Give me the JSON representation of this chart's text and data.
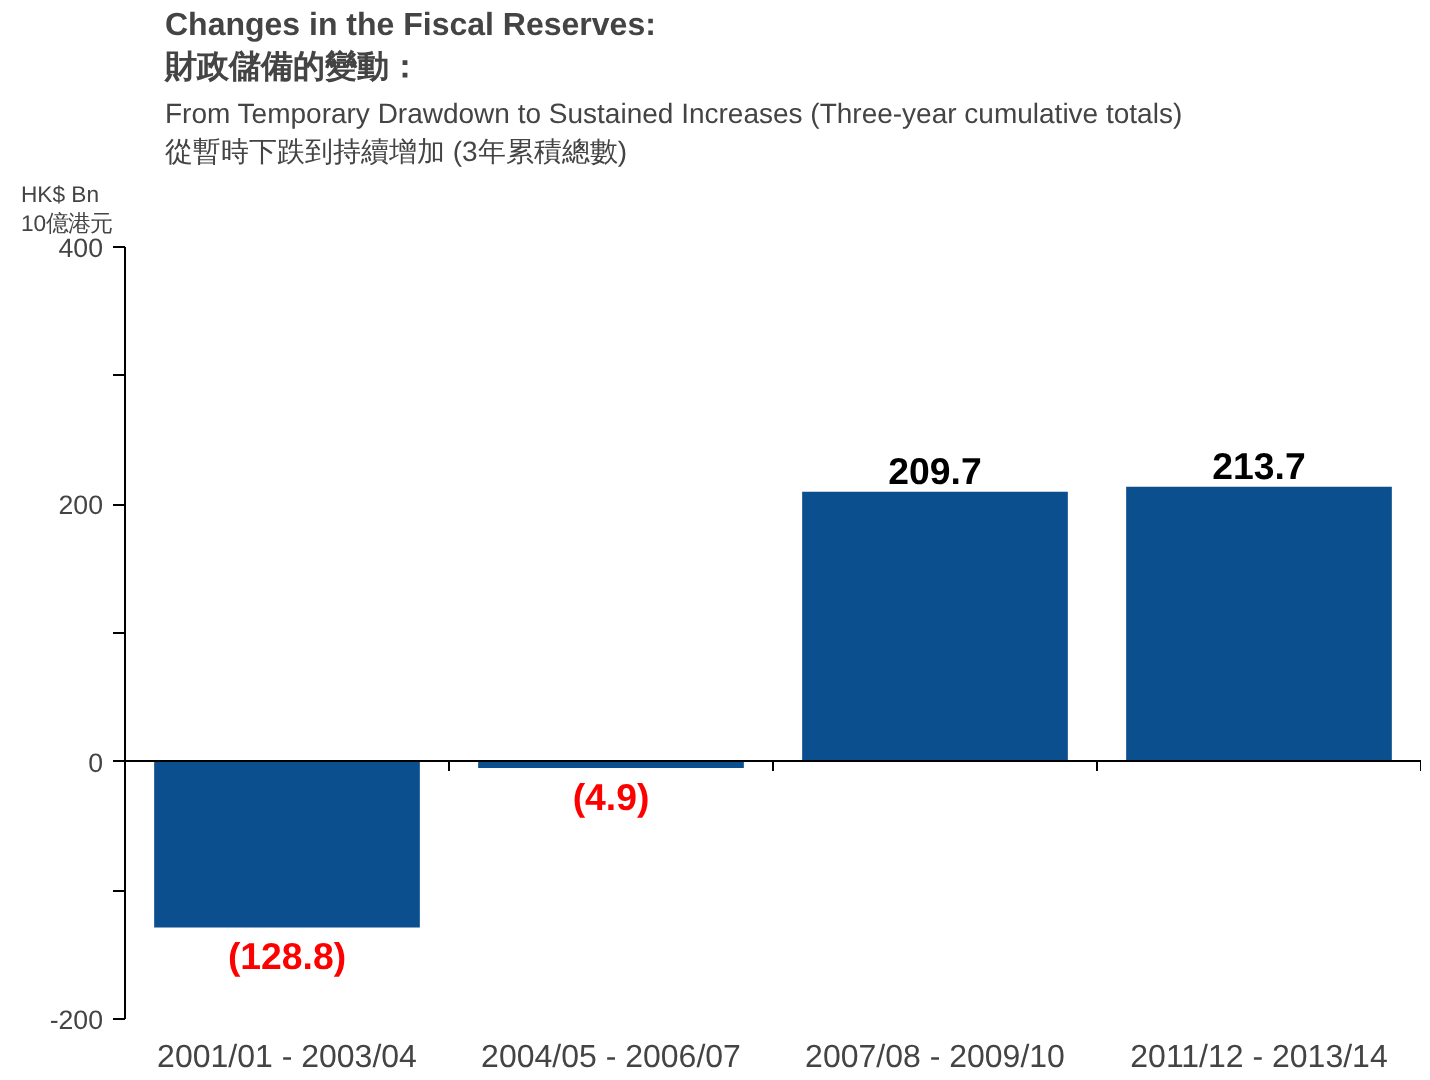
{
  "chart_data": {
    "type": "bar",
    "title": "Changes in the Fiscal Reserves:\n財政儲備的變動：",
    "subtitle": "From Temporary Drawdown to Sustained Increases (Three-year cumulative totals)\n從暫時下跌到持續增加 (3年累積總數)",
    "ylabel": "HK$ Bn\n10億港元",
    "categories": [
      "2001/01 - 2003/04",
      "2004/05 - 2006/07",
      "2007/08 - 2009/10",
      "2011/12 - 2013/14"
    ],
    "values": [
      -128.8,
      -4.9,
      209.7,
      213.7
    ],
    "value_labels": [
      "(128.8)",
      "(4.9)",
      "209.7",
      "213.7"
    ],
    "color": "#0b4f8e",
    "ylim": [
      -200,
      400
    ],
    "yticks": [
      -200,
      {
        "value": -100,
        "label": null
      },
      0,
      {
        "value": 100,
        "label": null
      },
      200,
      {
        "value": 300,
        "label": null
      },
      400
    ]
  }
}
